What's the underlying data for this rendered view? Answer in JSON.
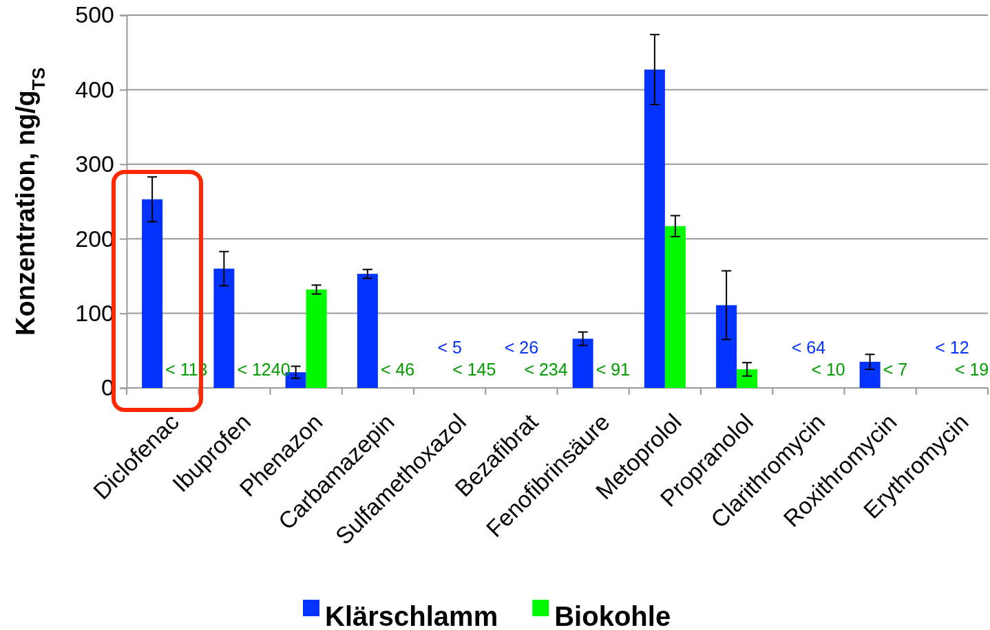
{
  "chart_data": {
    "type": "bar",
    "ylabel": "Konzentration, ng/g$_{TS}$",
    "categories": [
      "Diclofenac",
      "Ibuprofen",
      "Phenazon",
      "Carbamazepin",
      "Sulfamethoxazol",
      "Bezafibrat",
      "Fenofibrinsäure",
      "Metoprolol",
      "Propranolol",
      "Clarithromycin",
      "Roxithromycin",
      "Erythromycin"
    ],
    "series": [
      {
        "name": "Klärschlamm",
        "color": "#0433ff",
        "values": [
          253,
          160,
          21,
          153,
          null,
          null,
          66,
          427,
          111,
          null,
          35,
          null
        ],
        "errors": [
          30,
          23,
          8,
          6,
          null,
          null,
          9,
          47,
          46,
          null,
          10,
          null
        ],
        "value_labels": [
          null,
          null,
          null,
          null,
          "< 5",
          "< 26",
          null,
          null,
          null,
          "< 64",
          null,
          "< 12"
        ]
      },
      {
        "name": "Biokohle",
        "color": "#00f900",
        "values": [
          null,
          null,
          132,
          null,
          null,
          null,
          null,
          217,
          25,
          null,
          null,
          null
        ],
        "errors": [
          null,
          null,
          6,
          null,
          null,
          null,
          null,
          14,
          9,
          null,
          null,
          null
        ],
        "value_labels": [
          "< 113",
          "< 1240",
          null,
          "< 46",
          "< 145",
          "< 234",
          "< 91",
          null,
          null,
          "< 10",
          "< 7",
          "< 19"
        ]
      }
    ],
    "ylim": [
      0,
      500
    ],
    "yticks": [
      0,
      100,
      200,
      300,
      400,
      500
    ],
    "grid": "y",
    "legend": "bottom"
  }
}
